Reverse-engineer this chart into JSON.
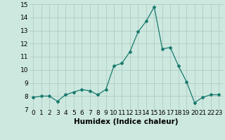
{
  "x": [
    0,
    1,
    2,
    3,
    4,
    5,
    6,
    7,
    8,
    9,
    10,
    11,
    12,
    13,
    14,
    15,
    16,
    17,
    18,
    19,
    20,
    21,
    22,
    23
  ],
  "y": [
    7.9,
    8.0,
    8.0,
    7.6,
    8.1,
    8.3,
    8.5,
    8.4,
    8.1,
    8.5,
    10.3,
    10.5,
    11.4,
    12.9,
    13.7,
    14.8,
    11.6,
    11.7,
    10.3,
    9.1,
    7.5,
    7.9,
    8.1,
    8.1
  ],
  "xlabel": "Humidex (Indice chaleur)",
  "ylim": [
    7,
    15
  ],
  "yticks": [
    7,
    8,
    9,
    10,
    11,
    12,
    13,
    14,
    15
  ],
  "xticks": [
    0,
    1,
    2,
    3,
    4,
    5,
    6,
    7,
    8,
    9,
    10,
    11,
    12,
    13,
    14,
    15,
    16,
    17,
    18,
    19,
    20,
    21,
    22,
    23
  ],
  "line_color": "#1a7a6e",
  "marker": "D",
  "marker_size": 2.0,
  "bg_color": "#cce8df",
  "grid_color": "#b0ccc4",
  "xlabel_fontsize": 7.5,
  "tick_fontsize": 6.5
}
